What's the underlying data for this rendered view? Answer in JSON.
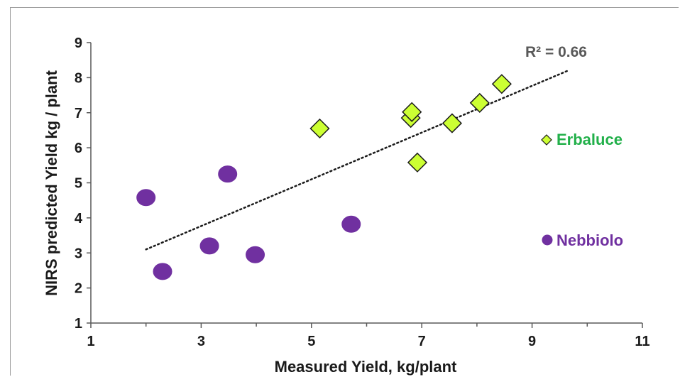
{
  "chart_data": {
    "type": "scatter",
    "title": "",
    "xlabel": "Measured Yield, kg/plant",
    "ylabel": "NIRS predicted Yield kg / plant",
    "xlim": [
      1,
      11
    ],
    "ylim": [
      1,
      9
    ],
    "xticks": [
      "1",
      "3",
      "5",
      "7",
      "9",
      "11"
    ],
    "yticks": [
      "1",
      "2",
      "3",
      "4",
      "5",
      "6",
      "7",
      "8",
      "9"
    ],
    "grid": false,
    "legend_placement": "right",
    "series": [
      {
        "name": "Erbaluce",
        "marker": "diamond",
        "color": "#ccff33",
        "stroke": "#1a1a1a",
        "label_color": "#22b04a",
        "points": [
          {
            "x": 5.15,
            "y": 6.55
          },
          {
            "x": 6.8,
            "y": 6.85
          },
          {
            "x": 6.82,
            "y": 7.02
          },
          {
            "x": 6.92,
            "y": 5.58
          },
          {
            "x": 7.55,
            "y": 6.7
          },
          {
            "x": 8.05,
            "y": 7.28
          },
          {
            "x": 8.45,
            "y": 7.82
          }
        ]
      },
      {
        "name": "Nebbiolo",
        "marker": "circle",
        "color": "#7030a0",
        "stroke": "#7030a0",
        "label_color": "#7030a0",
        "points": [
          {
            "x": 2.0,
            "y": 4.58
          },
          {
            "x": 2.3,
            "y": 2.47
          },
          {
            "x": 3.15,
            "y": 3.2
          },
          {
            "x": 3.48,
            "y": 5.25
          },
          {
            "x": 3.98,
            "y": 2.95
          },
          {
            "x": 5.72,
            "y": 3.82
          }
        ]
      }
    ],
    "trendline": {
      "style": "dotted",
      "color": "#1a1a1a",
      "x": [
        2.0,
        9.65
      ],
      "y": [
        3.1,
        8.2
      ],
      "label": "R² = 0.66"
    }
  }
}
